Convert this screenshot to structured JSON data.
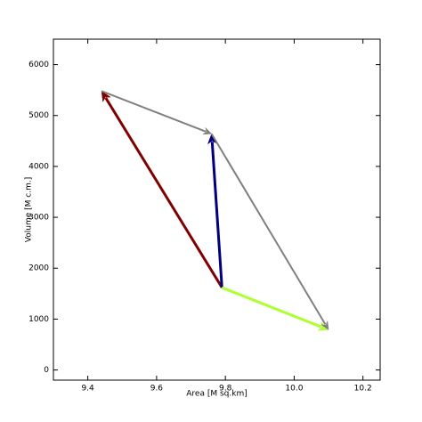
{
  "chart_data": {
    "type": "quiver",
    "x_label": "Area [M sq.km]",
    "y_label": "Volume [M c.m.]",
    "xlim": [
      9.3,
      10.25
    ],
    "ylim": [
      -200,
      6500
    ],
    "xticks": [
      9.4,
      9.6,
      9.8,
      {
        "value": 10,
        "label": "10.0"
      },
      10.2
    ],
    "yticks": [
      0,
      1000,
      2000,
      3000,
      4000,
      5000,
      6000
    ],
    "arrows": [
      {
        "color": "#7f0000",
        "x": [
          9.79,
          9.44
        ],
        "y": [
          1620,
          5480
        ]
      },
      {
        "color": "#00007f",
        "x": [
          9.79,
          9.76
        ],
        "y": [
          1620,
          4640
        ]
      },
      {
        "color": "#adff2f",
        "x": [
          9.79,
          10.1
        ],
        "y": [
          1620,
          790
        ]
      },
      {
        "color": "#808080",
        "x": [
          9.44,
          9.76
        ],
        "y": [
          5480,
          4640
        ]
      },
      {
        "color": "#808080",
        "x": [
          9.76,
          10.1
        ],
        "y": [
          4640,
          790
        ]
      }
    ]
  }
}
